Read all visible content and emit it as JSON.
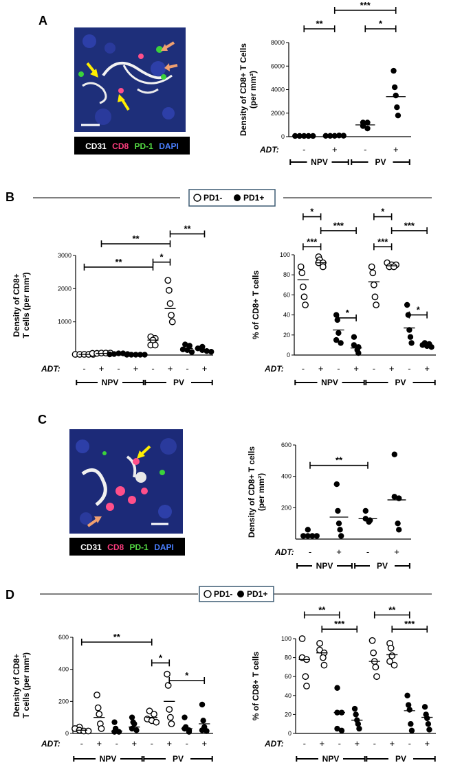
{
  "panel_labels": [
    "A",
    "B",
    "C",
    "D"
  ],
  "legend": {
    "open": "PD1-",
    "filled": "PD1+"
  },
  "stain_legend": {
    "items": [
      {
        "text": "CD31",
        "color": "#ffffff"
      },
      {
        "text": "CD8",
        "color": "#ff3d7f"
      },
      {
        "text": "PD-1",
        "color": "#55dd44"
      },
      {
        "text": "DAPI",
        "color": "#4a7fff"
      }
    ]
  },
  "chart_data": [
    {
      "id": "A",
      "type": "scatter",
      "ylabel_lines": [
        "Density of CD8+ T Cells",
        "(per mm²)"
      ],
      "ylim": [
        0,
        8000
      ],
      "yticks": [
        0,
        2000,
        4000,
        6000,
        8000
      ],
      "x_label": "ADT:",
      "signs": [
        "-",
        "+",
        "-",
        "+"
      ],
      "groups": [
        "NPV",
        "PV"
      ],
      "series": [
        {
          "style": "filled",
          "columns": [
            {
              "x": 0,
              "values": [
                60,
                60,
                60,
                60,
                60
              ],
              "median": 60
            },
            {
              "x": 1,
              "values": [
                70,
                70,
                70,
                100,
                80
              ],
              "median": 80
            },
            {
              "x": 2,
              "values": [
                900,
                700,
                1200,
                1200
              ],
              "median": 1000
            },
            {
              "x": 3,
              "values": [
                5600,
                4200,
                3500,
                2500,
                1800
              ],
              "median": 3400
            }
          ]
        }
      ],
      "brackets": [
        {
          "from": 0,
          "to": 1,
          "level": 2,
          "label": "**"
        },
        {
          "from": 2,
          "to": 3,
          "level": 2,
          "label": "*"
        },
        {
          "from": 1,
          "to": 3,
          "level": 3,
          "label": "***"
        }
      ]
    },
    {
      "id": "B-left",
      "type": "scatter",
      "ylabel_lines": [
        "Density of CD8+",
        "T cells (per mm²)"
      ],
      "ylim": [
        0,
        3000
      ],
      "yticks": [
        1000,
        2000,
        3000
      ],
      "x_label": "ADT:",
      "signs": [
        "-",
        "+",
        "-",
        "+",
        "-",
        "+",
        "-",
        "+"
      ],
      "groups": [
        "NPV",
        "PV"
      ],
      "series": [
        {
          "style": "open",
          "columns": [
            {
              "x": 0,
              "values": [
                20,
                20,
                20,
                20,
                20
              ],
              "median": 20
            },
            {
              "x": 1,
              "values": [
                50,
                50,
                60,
                60,
                60
              ],
              "median": 50
            },
            {
              "x": 4,
              "values": [
                550,
                500,
                450,
                300,
                300
              ],
              "median": 450
            },
            {
              "x": 5,
              "values": [
                2250,
                1950,
                1550,
                1200,
                1000
              ],
              "median": 1400
            }
          ]
        },
        {
          "style": "filled",
          "columns": [
            {
              "x": 2,
              "values": [
                20,
                30,
                50,
                50,
                30
              ],
              "median": 30
            },
            {
              "x": 3,
              "values": [
                10,
                10,
                10,
                10,
                10
              ],
              "median": 10
            },
            {
              "x": 6,
              "values": [
                320,
                280,
                170,
                150,
                90
              ],
              "median": 200
            },
            {
              "x": 7,
              "values": [
                250,
                200,
                150,
                120,
                100
              ],
              "median": 150
            }
          ]
        }
      ],
      "brackets": [
        {
          "from": 0,
          "to": 4,
          "level": 2650,
          "label": "**"
        },
        {
          "from": 4,
          "to": 5,
          "level": 2800,
          "label": "*"
        },
        {
          "from": 1,
          "to": 5,
          "level": 3350,
          "label": "**"
        },
        {
          "from": 5,
          "to": 7,
          "level": 3650,
          "label": "**"
        }
      ]
    },
    {
      "id": "B-right",
      "type": "scatter",
      "ylabel_lines": [
        "% of CD8+ T cells"
      ],
      "ylim": [
        0,
        100
      ],
      "yticks": [
        0,
        20,
        40,
        60,
        80,
        100
      ],
      "x_label": "ADT:",
      "signs": [
        "-",
        "+",
        "-",
        "+",
        "-",
        "+",
        "-",
        "+"
      ],
      "groups": [
        "NPV",
        "PV"
      ],
      "series": [
        {
          "style": "open",
          "columns": [
            {
              "x": 0,
              "values": [
                88,
                82,
                68,
                58,
                50
              ],
              "median": 75
            },
            {
              "x": 1,
              "values": [
                98,
                95,
                92,
                92,
                88
              ],
              "median": 92
            },
            {
              "x": 4,
              "values": [
                88,
                82,
                70,
                58,
                50
              ],
              "median": 73
            },
            {
              "x": 5,
              "values": [
                92,
                90,
                90,
                88,
                88
              ],
              "median": 89
            }
          ]
        },
        {
          "style": "filled",
          "columns": [
            {
              "x": 2,
              "values": [
                40,
                35,
                22,
                15,
                12
              ],
              "median": 25
            },
            {
              "x": 3,
              "values": [
                18,
                10,
                8,
                5,
                2
              ],
              "median": 7
            },
            {
              "x": 6,
              "values": [
                50,
                40,
                25,
                18,
                12
              ],
              "median": 27
            },
            {
              "x": 7,
              "values": [
                12,
                11,
                10,
                9,
                8
              ],
              "median": 10
            }
          ]
        }
      ],
      "brackets": [
        {
          "from": 0,
          "to": 1,
          "level": 138,
          "label": "*"
        },
        {
          "from": 0,
          "to": 1,
          "level": 108,
          "label": "***"
        },
        {
          "from": 1,
          "to": 3,
          "level": 124,
          "label": "***"
        },
        {
          "from": 2,
          "to": 3,
          "level": 37,
          "label": "*"
        },
        {
          "from": 4,
          "to": 5,
          "level": 138,
          "label": "*"
        },
        {
          "from": 4,
          "to": 5,
          "level": 108,
          "label": "***"
        },
        {
          "from": 5,
          "to": 7,
          "level": 124,
          "label": "***"
        },
        {
          "from": 6,
          "to": 7,
          "level": 40,
          "label": "*"
        }
      ]
    },
    {
      "id": "C",
      "type": "scatter",
      "ylabel_lines": [
        "Density of CD8+ T cells",
        "(per mm²)"
      ],
      "ylim": [
        0,
        600
      ],
      "yticks": [
        200,
        400,
        600
      ],
      "x_label": "ADT:",
      "signs": [
        "-",
        "+",
        "-",
        "+"
      ],
      "groups": [
        "NPV",
        "PV"
      ],
      "series": [
        {
          "style": "filled",
          "columns": [
            {
              "x": 0,
              "values": [
                60,
                20,
                20,
                20,
                20
              ],
              "median": 30
            },
            {
              "x": 1,
              "values": [
                350,
                180,
                100,
                60,
                20
              ],
              "median": 140
            },
            {
              "x": 2,
              "values": [
                180,
                130,
                120,
                110
              ],
              "median": 130
            },
            {
              "x": 3,
              "values": [
                540,
                270,
                260,
                100,
                60
              ],
              "median": 250
            }
          ]
        }
      ],
      "brackets": [
        {
          "from": 0,
          "to": 2,
          "level": 470,
          "label": "**"
        }
      ]
    },
    {
      "id": "D-left",
      "type": "scatter",
      "ylabel_lines": [
        "Density of CD8+",
        "T cells (per mm²)"
      ],
      "ylim": [
        0,
        600
      ],
      "yticks": [
        0,
        200,
        400,
        600
      ],
      "x_label": "ADT:",
      "signs": [
        "-",
        "+",
        "-",
        "+",
        "-",
        "+",
        "-",
        "+"
      ],
      "groups": [
        "NPV",
        "PV"
      ],
      "series": [
        {
          "style": "open",
          "columns": [
            {
              "x": 0,
              "values": [
                40,
                30,
                20,
                15,
                15
              ],
              "median": 20
            },
            {
              "x": 1,
              "values": [
                240,
                160,
                120,
                60,
                30
              ],
              "median": 100
            },
            {
              "x": 4,
              "values": [
                140,
                120,
                90,
                80,
                70
              ],
              "median": 100
            },
            {
              "x": 5,
              "values": [
                370,
                300,
                150,
                100,
                60
              ],
              "median": 200
            }
          ]
        },
        {
          "style": "filled",
          "columns": [
            {
              "x": 2,
              "values": [
                70,
                30,
                10,
                10
              ],
              "median": 15
            },
            {
              "x": 3,
              "values": [
                100,
                70,
                60,
                30,
                20
              ],
              "median": 40
            },
            {
              "x": 6,
              "values": [
                100,
                40,
                30,
                20,
                10
              ],
              "median": 30
            },
            {
              "x": 7,
              "values": [
                180,
                80,
                40,
                20,
                15
              ],
              "median": 60
            }
          ]
        }
      ],
      "brackets": [
        {
          "from": 0,
          "to": 4,
          "level": 570,
          "label": "**"
        },
        {
          "from": 4,
          "to": 5,
          "level": 440,
          "label": "*"
        },
        {
          "from": 5,
          "to": 7,
          "level": 330,
          "label": "*"
        }
      ]
    },
    {
      "id": "D-right",
      "type": "scatter",
      "ylabel_lines": [
        "% of CD8+ T cells"
      ],
      "ylim": [
        0,
        100
      ],
      "yticks": [
        0,
        20,
        40,
        60,
        80,
        100
      ],
      "x_label": "ADT:",
      "signs": [
        "-",
        "+",
        "-",
        "+",
        "-",
        "+",
        "-",
        "+"
      ],
      "groups": [
        "NPV",
        "PV"
      ],
      "series": [
        {
          "style": "open",
          "columns": [
            {
              "x": 0,
              "values": [
                100,
                80,
                78,
                60,
                50
              ],
              "median": 78
            },
            {
              "x": 1,
              "values": [
                95,
                88,
                85,
                80,
                72
              ],
              "median": 85
            },
            {
              "x": 4,
              "values": [
                98,
                85,
                76,
                70,
                60
              ],
              "median": 76
            },
            {
              "x": 5,
              "values": [
                95,
                90,
                82,
                76,
                72
              ],
              "median": 83
            }
          ]
        },
        {
          "style": "filled",
          "columns": [
            {
              "x": 2,
              "values": [
                48,
                22,
                22,
                5,
                3
              ],
              "median": 22
            },
            {
              "x": 3,
              "values": [
                26,
                20,
                14,
                10,
                5
              ],
              "median": 14
            },
            {
              "x": 6,
              "values": [
                40,
                30,
                25,
                10,
                3
              ],
              "median": 24
            },
            {
              "x": 7,
              "values": [
                28,
                20,
                16,
                10,
                4
              ],
              "median": 17
            }
          ]
        }
      ],
      "brackets": [
        {
          "from": 0,
          "to": 2,
          "level": 125,
          "label": "**"
        },
        {
          "from": 1,
          "to": 3,
          "level": 110,
          "label": "***"
        },
        {
          "from": 4,
          "to": 6,
          "level": 125,
          "label": "**"
        },
        {
          "from": 5,
          "to": 7,
          "level": 110,
          "label": "***"
        }
      ]
    }
  ]
}
